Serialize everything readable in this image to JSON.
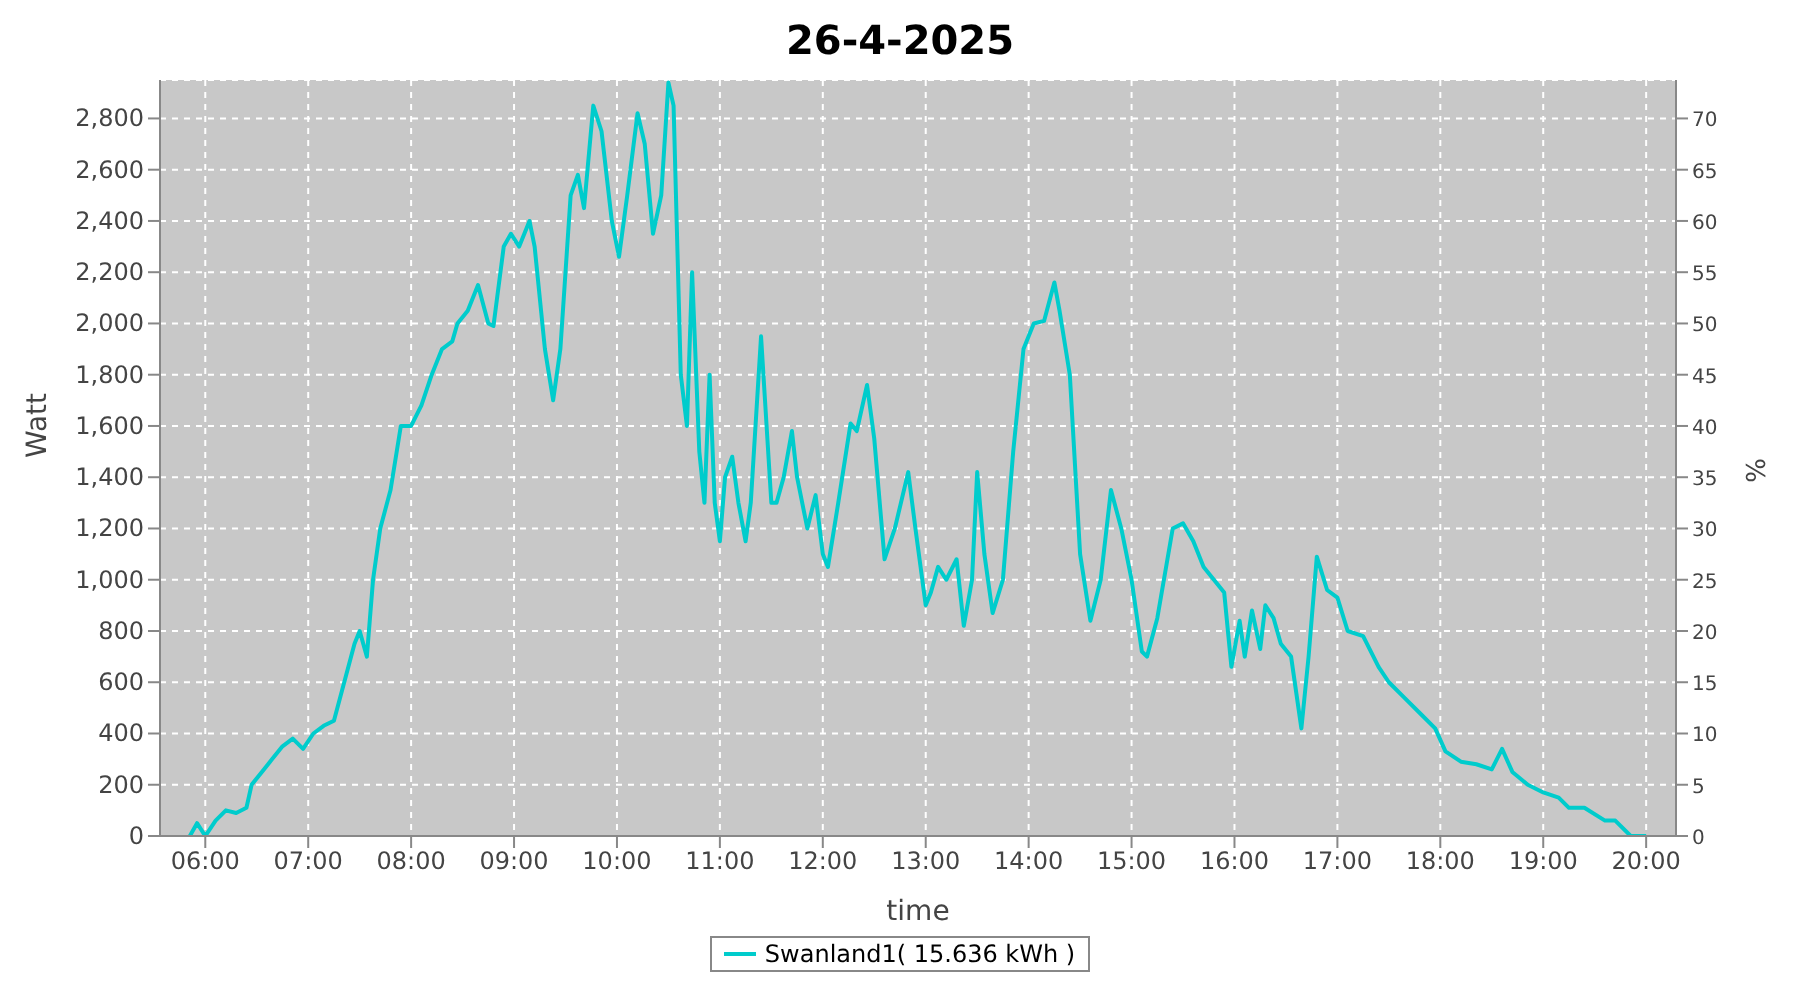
{
  "chart_data": {
    "type": "line",
    "title": "26-4-2025",
    "xlabel": "time",
    "ylabel": "Watt",
    "y2label": "%",
    "x": [
      5.85,
      5.92,
      6.0,
      6.1,
      6.2,
      6.3,
      6.4,
      6.45,
      6.55,
      6.65,
      6.75,
      6.85,
      6.95,
      7.05,
      7.15,
      7.25,
      7.35,
      7.45,
      7.5,
      7.57,
      7.63,
      7.7,
      7.8,
      7.9,
      8.0,
      8.1,
      8.2,
      8.3,
      8.4,
      8.45,
      8.55,
      8.65,
      8.75,
      8.8,
      8.9,
      8.97,
      9.05,
      9.15,
      9.2,
      9.3,
      9.38,
      9.45,
      9.55,
      9.62,
      9.68,
      9.77,
      9.85,
      9.95,
      10.02,
      10.1,
      10.2,
      10.27,
      10.35,
      10.43,
      10.5,
      10.55,
      10.62,
      10.68,
      10.73,
      10.8,
      10.85,
      10.9,
      10.95,
      11.0,
      11.05,
      11.12,
      11.18,
      11.25,
      11.3,
      11.4,
      11.5,
      11.55,
      11.62,
      11.7,
      11.75,
      11.85,
      11.93,
      12.0,
      12.05,
      12.15,
      12.27,
      12.33,
      12.43,
      12.5,
      12.6,
      12.7,
      12.83,
      12.9,
      13.0,
      13.05,
      13.12,
      13.2,
      13.3,
      13.37,
      13.45,
      13.5,
      13.57,
      13.65,
      13.75,
      13.85,
      13.95,
      14.05,
      14.15,
      14.25,
      14.3,
      14.4,
      14.5,
      14.6,
      14.7,
      14.8,
      14.9,
      15.0,
      15.1,
      15.15,
      15.25,
      15.4,
      15.5,
      15.6,
      15.7,
      15.8,
      15.9,
      15.97,
      16.05,
      16.1,
      16.17,
      16.25,
      16.3,
      16.38,
      16.45,
      16.55,
      16.65,
      16.72,
      16.8,
      16.9,
      17.0,
      17.1,
      17.25,
      17.4,
      17.5,
      17.65,
      17.8,
      17.95,
      18.05,
      18.2,
      18.35,
      18.5,
      18.6,
      18.7,
      18.85,
      19.0,
      19.15,
      19.25,
      19.4,
      19.6,
      19.7,
      19.85,
      20.0
    ],
    "series": [
      {
        "name": "Swanland1( 15.636 kWh )",
        "color": "#00cccc",
        "values": [
          0,
          50,
          0,
          60,
          100,
          90,
          110,
          200,
          250,
          300,
          350,
          380,
          340,
          400,
          430,
          450,
          600,
          750,
          800,
          700,
          1000,
          1200,
          1350,
          1600,
          1600,
          1680,
          1800,
          1900,
          1930,
          2000,
          2050,
          2150,
          2000,
          1990,
          2300,
          2350,
          2300,
          2400,
          2300,
          1900,
          1700,
          1900,
          2500,
          2580,
          2450,
          2850,
          2750,
          2400,
          2260,
          2500,
          2820,
          2700,
          2350,
          2500,
          2940,
          2850,
          1800,
          1600,
          2200,
          1500,
          1300,
          1800,
          1300,
          1150,
          1400,
          1480,
          1300,
          1150,
          1300,
          1950,
          1300,
          1300,
          1400,
          1580,
          1400,
          1200,
          1330,
          1100,
          1050,
          1300,
          1610,
          1580,
          1760,
          1550,
          1080,
          1200,
          1420,
          1200,
          900,
          950,
          1050,
          1000,
          1080,
          820,
          1000,
          1420,
          1100,
          870,
          1000,
          1500,
          1900,
          2000,
          2010,
          2160,
          2050,
          1800,
          1100,
          840,
          1000,
          1350,
          1200,
          1000,
          720,
          700,
          850,
          1200,
          1220,
          1150,
          1050,
          1000,
          950,
          660,
          840,
          700,
          880,
          730,
          900,
          850,
          750,
          700,
          420,
          700,
          1090,
          960,
          930,
          800,
          780,
          660,
          600,
          540,
          480,
          420,
          330,
          290,
          280,
          260,
          340,
          250,
          200,
          170,
          150,
          110,
          110,
          60,
          60,
          0,
          0
        ]
      }
    ],
    "xlim": [
      5.56,
      20.29
    ],
    "xticks": [
      {
        "value": 6,
        "label": "06:00"
      },
      {
        "value": 7,
        "label": "07:00"
      },
      {
        "value": 8,
        "label": "08:00"
      },
      {
        "value": 9,
        "label": "09:00"
      },
      {
        "value": 10,
        "label": "10:00"
      },
      {
        "value": 11,
        "label": "11:00"
      },
      {
        "value": 12,
        "label": "12:00"
      },
      {
        "value": 13,
        "label": "13:00"
      },
      {
        "value": 14,
        "label": "14:00"
      },
      {
        "value": 15,
        "label": "15:00"
      },
      {
        "value": 16,
        "label": "16:00"
      },
      {
        "value": 17,
        "label": "17:00"
      },
      {
        "value": 18,
        "label": "18:00"
      },
      {
        "value": 19,
        "label": "19:00"
      },
      {
        "value": 20,
        "label": "20:00"
      }
    ],
    "ylim": [
      0,
      2950
    ],
    "yticks": [
      0,
      200,
      400,
      600,
      800,
      {
        "value": 1000,
        "label": "1,000"
      },
      {
        "value": 1200,
        "label": "1,200"
      },
      {
        "value": 1400,
        "label": "1,400"
      },
      {
        "value": 1600,
        "label": "1,600"
      },
      {
        "value": 1800,
        "label": "1,800"
      },
      {
        "value": 2000,
        "label": "2,000"
      },
      {
        "value": 2200,
        "label": "2,200"
      },
      {
        "value": 2400,
        "label": "2,400"
      },
      {
        "value": 2600,
        "label": "2,600"
      },
      {
        "value": 2800,
        "label": "2,800"
      }
    ],
    "y2lim": [
      0,
      73.75
    ],
    "y2ticks": [
      0,
      5,
      10,
      15,
      20,
      25,
      30,
      35,
      40,
      45,
      50,
      55,
      60,
      65,
      70
    ],
    "grid": true,
    "legend": "bottom",
    "marker": "none",
    "line_style": "solid"
  }
}
